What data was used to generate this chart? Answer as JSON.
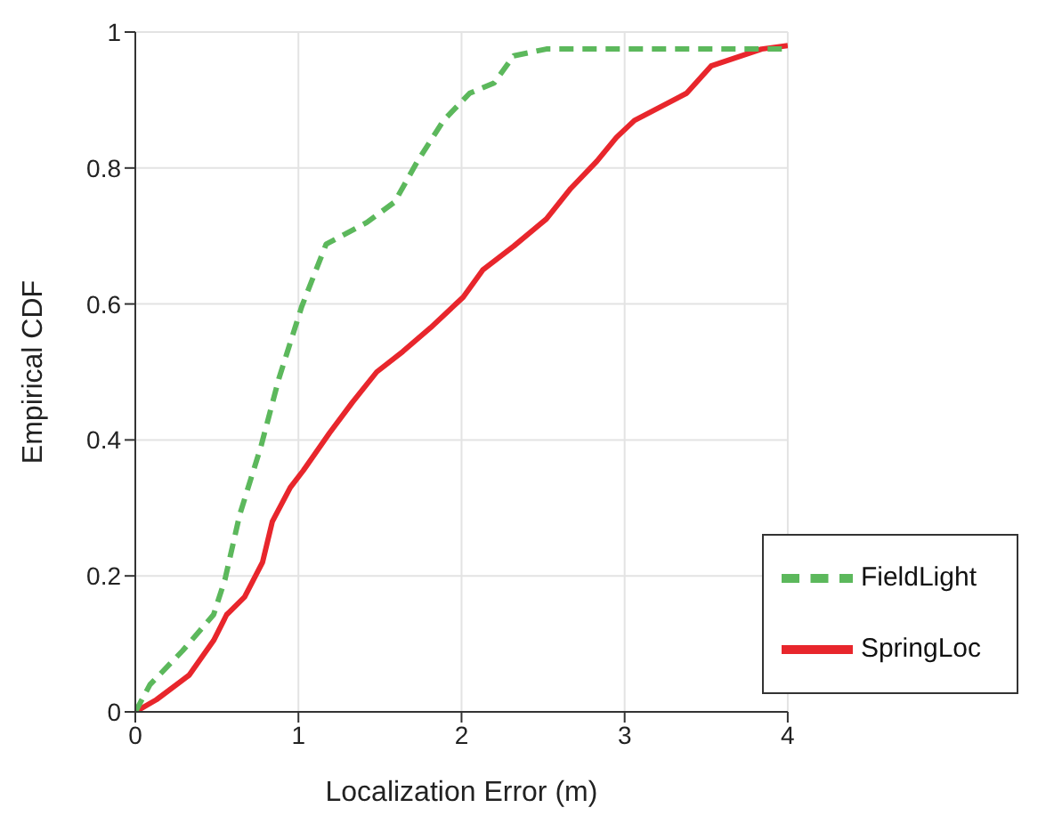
{
  "chart_data": {
    "type": "step",
    "xlabel": "Localization Error (m)",
    "ylabel": "Empirical CDF",
    "xlim": [
      0,
      4
    ],
    "ylim": [
      0,
      1
    ],
    "xticks": [
      0,
      1,
      2,
      3,
      4
    ],
    "yticks": [
      0,
      0.2,
      0.4,
      0.6,
      0.8,
      1
    ],
    "grid": true,
    "legend": "bottom right",
    "series": [
      {
        "name": "SpringLoc",
        "color": "#e8262c",
        "line_style": "solid",
        "x": [
          0,
          0.13,
          0.33,
          0.48,
          0.56,
          0.67,
          0.78,
          0.84,
          0.95,
          1.03,
          1.19,
          1.33,
          1.48,
          1.64,
          1.81,
          2.01,
          2.13,
          2.32,
          2.52,
          2.67,
          2.83,
          2.95,
          3.06,
          3.38,
          3.53,
          3.84,
          4
        ],
        "values": [
          0,
          0.018,
          0.054,
          0.105,
          0.143,
          0.169,
          0.22,
          0.28,
          0.33,
          0.355,
          0.41,
          0.455,
          0.5,
          0.53,
          0.565,
          0.61,
          0.65,
          0.685,
          0.725,
          0.77,
          0.81,
          0.845,
          0.87,
          0.91,
          0.95,
          0.975,
          0.98
        ]
      },
      {
        "name": "FieldLight",
        "color": "#5cb85c",
        "line_style": "dashed",
        "x": [
          0,
          0.09,
          0.29,
          0.48,
          0.55,
          0.64,
          0.77,
          0.88,
          1.02,
          1.17,
          1.42,
          1.59,
          1.73,
          1.89,
          2.05,
          2.2,
          2.32,
          2.52,
          4
        ],
        "values": [
          0,
          0.04,
          0.09,
          0.143,
          0.195,
          0.29,
          0.39,
          0.49,
          0.596,
          0.688,
          0.72,
          0.75,
          0.81,
          0.87,
          0.91,
          0.925,
          0.965,
          0.975,
          0.975
        ]
      }
    ]
  }
}
